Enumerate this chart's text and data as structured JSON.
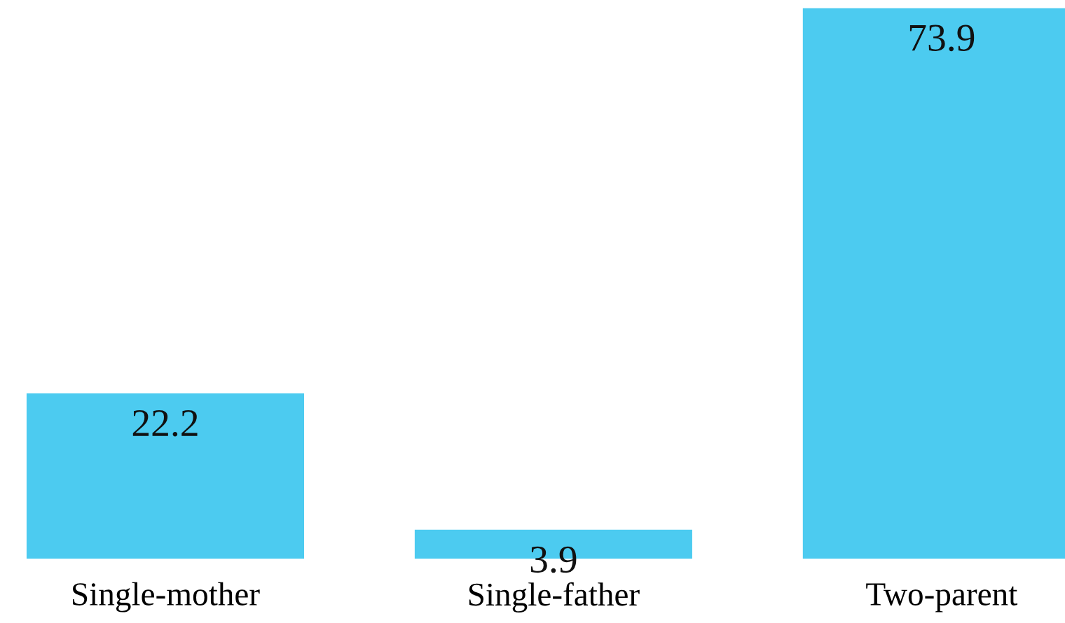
{
  "chart_data": {
    "type": "bar",
    "categories": [
      "Single-mother",
      "Single-father",
      "Two-parent"
    ],
    "values": [
      22.2,
      3.9,
      73.9
    ],
    "color": "#4ccbf0",
    "data_labels": true,
    "grid": false,
    "legend": false
  }
}
